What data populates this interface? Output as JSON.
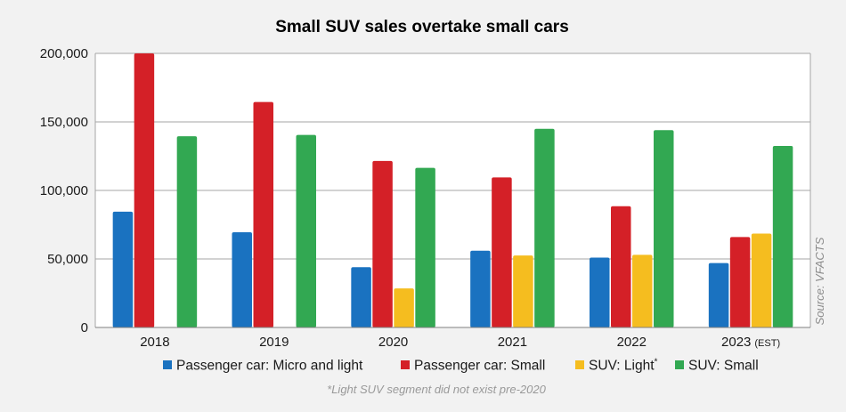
{
  "colors": {
    "background": "#f2f2f2",
    "plot_background": "#ffffff",
    "grid": "#a6a6a6",
    "series": [
      "#1a72c0",
      "#d42027",
      "#f5bd1f",
      "#32a852"
    ]
  },
  "chart_data": {
    "type": "bar",
    "title": "Small SUV sales overtake small cars",
    "xlabel": "",
    "ylabel": "",
    "ylim": [
      0,
      200000
    ],
    "yticks": [
      "0",
      "50,000",
      "100,000",
      "150,000",
      "200,000"
    ],
    "categories": [
      "2018",
      "2019",
      "2020",
      "2021",
      "2022",
      "2023"
    ],
    "category_suffix": [
      "",
      "",
      "",
      "",
      "",
      "(EST)"
    ],
    "grid": true,
    "legend_position": "bottom",
    "series": [
      {
        "name": "Passenger car: Micro and light",
        "values": [
          84500,
          69500,
          44000,
          56000,
          51000,
          47000
        ]
      },
      {
        "name": "Passenger car: Small",
        "values": [
          200000,
          164500,
          121500,
          109500,
          88500,
          66000
        ]
      },
      {
        "name": "SUV: Light",
        "name_superscript": "*",
        "values": [
          null,
          null,
          28500,
          52500,
          53000,
          68500
        ]
      },
      {
        "name": "SUV: Small",
        "values": [
          139500,
          140500,
          116500,
          145000,
          144000,
          132500
        ]
      }
    ],
    "footnote": "*Light SUV segment did not exist pre-2020",
    "source": "Source: VFACTS"
  }
}
